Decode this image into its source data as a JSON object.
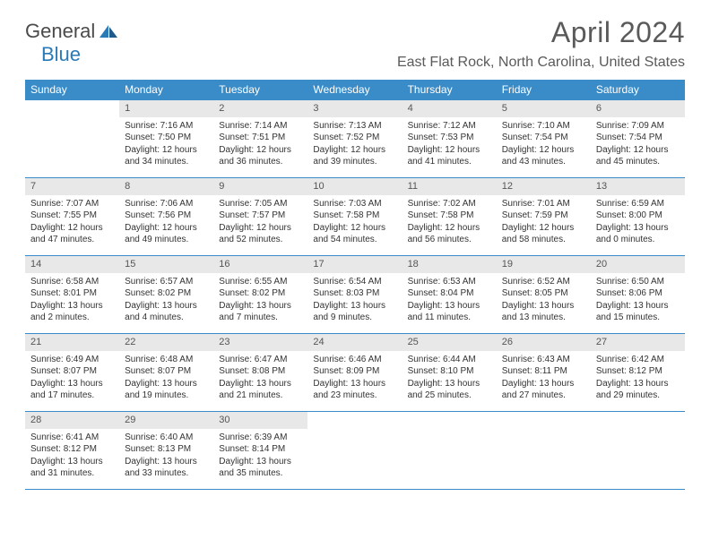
{
  "brand": {
    "part1": "General",
    "part2": "Blue"
  },
  "title": "April 2024",
  "location": "East Flat Rock, North Carolina, United States",
  "colors": {
    "header_bg": "#3a8cc9",
    "header_text": "#ffffff",
    "daynum_bg": "#e8e8e8",
    "border": "#3a8cc9",
    "text": "#333333",
    "brand_gray": "#4a4a4a",
    "brand_blue": "#2a7ab8"
  },
  "day_names": [
    "Sunday",
    "Monday",
    "Tuesday",
    "Wednesday",
    "Thursday",
    "Friday",
    "Saturday"
  ],
  "weeks": [
    [
      null,
      {
        "n": "1",
        "sr": "Sunrise: 7:16 AM",
        "ss": "Sunset: 7:50 PM",
        "d1": "Daylight: 12 hours",
        "d2": "and 34 minutes."
      },
      {
        "n": "2",
        "sr": "Sunrise: 7:14 AM",
        "ss": "Sunset: 7:51 PM",
        "d1": "Daylight: 12 hours",
        "d2": "and 36 minutes."
      },
      {
        "n": "3",
        "sr": "Sunrise: 7:13 AM",
        "ss": "Sunset: 7:52 PM",
        "d1": "Daylight: 12 hours",
        "d2": "and 39 minutes."
      },
      {
        "n": "4",
        "sr": "Sunrise: 7:12 AM",
        "ss": "Sunset: 7:53 PM",
        "d1": "Daylight: 12 hours",
        "d2": "and 41 minutes."
      },
      {
        "n": "5",
        "sr": "Sunrise: 7:10 AM",
        "ss": "Sunset: 7:54 PM",
        "d1": "Daylight: 12 hours",
        "d2": "and 43 minutes."
      },
      {
        "n": "6",
        "sr": "Sunrise: 7:09 AM",
        "ss": "Sunset: 7:54 PM",
        "d1": "Daylight: 12 hours",
        "d2": "and 45 minutes."
      }
    ],
    [
      {
        "n": "7",
        "sr": "Sunrise: 7:07 AM",
        "ss": "Sunset: 7:55 PM",
        "d1": "Daylight: 12 hours",
        "d2": "and 47 minutes."
      },
      {
        "n": "8",
        "sr": "Sunrise: 7:06 AM",
        "ss": "Sunset: 7:56 PM",
        "d1": "Daylight: 12 hours",
        "d2": "and 49 minutes."
      },
      {
        "n": "9",
        "sr": "Sunrise: 7:05 AM",
        "ss": "Sunset: 7:57 PM",
        "d1": "Daylight: 12 hours",
        "d2": "and 52 minutes."
      },
      {
        "n": "10",
        "sr": "Sunrise: 7:03 AM",
        "ss": "Sunset: 7:58 PM",
        "d1": "Daylight: 12 hours",
        "d2": "and 54 minutes."
      },
      {
        "n": "11",
        "sr": "Sunrise: 7:02 AM",
        "ss": "Sunset: 7:58 PM",
        "d1": "Daylight: 12 hours",
        "d2": "and 56 minutes."
      },
      {
        "n": "12",
        "sr": "Sunrise: 7:01 AM",
        "ss": "Sunset: 7:59 PM",
        "d1": "Daylight: 12 hours",
        "d2": "and 58 minutes."
      },
      {
        "n": "13",
        "sr": "Sunrise: 6:59 AM",
        "ss": "Sunset: 8:00 PM",
        "d1": "Daylight: 13 hours",
        "d2": "and 0 minutes."
      }
    ],
    [
      {
        "n": "14",
        "sr": "Sunrise: 6:58 AM",
        "ss": "Sunset: 8:01 PM",
        "d1": "Daylight: 13 hours",
        "d2": "and 2 minutes."
      },
      {
        "n": "15",
        "sr": "Sunrise: 6:57 AM",
        "ss": "Sunset: 8:02 PM",
        "d1": "Daylight: 13 hours",
        "d2": "and 4 minutes."
      },
      {
        "n": "16",
        "sr": "Sunrise: 6:55 AM",
        "ss": "Sunset: 8:02 PM",
        "d1": "Daylight: 13 hours",
        "d2": "and 7 minutes."
      },
      {
        "n": "17",
        "sr": "Sunrise: 6:54 AM",
        "ss": "Sunset: 8:03 PM",
        "d1": "Daylight: 13 hours",
        "d2": "and 9 minutes."
      },
      {
        "n": "18",
        "sr": "Sunrise: 6:53 AM",
        "ss": "Sunset: 8:04 PM",
        "d1": "Daylight: 13 hours",
        "d2": "and 11 minutes."
      },
      {
        "n": "19",
        "sr": "Sunrise: 6:52 AM",
        "ss": "Sunset: 8:05 PM",
        "d1": "Daylight: 13 hours",
        "d2": "and 13 minutes."
      },
      {
        "n": "20",
        "sr": "Sunrise: 6:50 AM",
        "ss": "Sunset: 8:06 PM",
        "d1": "Daylight: 13 hours",
        "d2": "and 15 minutes."
      }
    ],
    [
      {
        "n": "21",
        "sr": "Sunrise: 6:49 AM",
        "ss": "Sunset: 8:07 PM",
        "d1": "Daylight: 13 hours",
        "d2": "and 17 minutes."
      },
      {
        "n": "22",
        "sr": "Sunrise: 6:48 AM",
        "ss": "Sunset: 8:07 PM",
        "d1": "Daylight: 13 hours",
        "d2": "and 19 minutes."
      },
      {
        "n": "23",
        "sr": "Sunrise: 6:47 AM",
        "ss": "Sunset: 8:08 PM",
        "d1": "Daylight: 13 hours",
        "d2": "and 21 minutes."
      },
      {
        "n": "24",
        "sr": "Sunrise: 6:46 AM",
        "ss": "Sunset: 8:09 PM",
        "d1": "Daylight: 13 hours",
        "d2": "and 23 minutes."
      },
      {
        "n": "25",
        "sr": "Sunrise: 6:44 AM",
        "ss": "Sunset: 8:10 PM",
        "d1": "Daylight: 13 hours",
        "d2": "and 25 minutes."
      },
      {
        "n": "26",
        "sr": "Sunrise: 6:43 AM",
        "ss": "Sunset: 8:11 PM",
        "d1": "Daylight: 13 hours",
        "d2": "and 27 minutes."
      },
      {
        "n": "27",
        "sr": "Sunrise: 6:42 AM",
        "ss": "Sunset: 8:12 PM",
        "d1": "Daylight: 13 hours",
        "d2": "and 29 minutes."
      }
    ],
    [
      {
        "n": "28",
        "sr": "Sunrise: 6:41 AM",
        "ss": "Sunset: 8:12 PM",
        "d1": "Daylight: 13 hours",
        "d2": "and 31 minutes."
      },
      {
        "n": "29",
        "sr": "Sunrise: 6:40 AM",
        "ss": "Sunset: 8:13 PM",
        "d1": "Daylight: 13 hours",
        "d2": "and 33 minutes."
      },
      {
        "n": "30",
        "sr": "Sunrise: 6:39 AM",
        "ss": "Sunset: 8:14 PM",
        "d1": "Daylight: 13 hours",
        "d2": "and 35 minutes."
      },
      null,
      null,
      null,
      null
    ]
  ]
}
